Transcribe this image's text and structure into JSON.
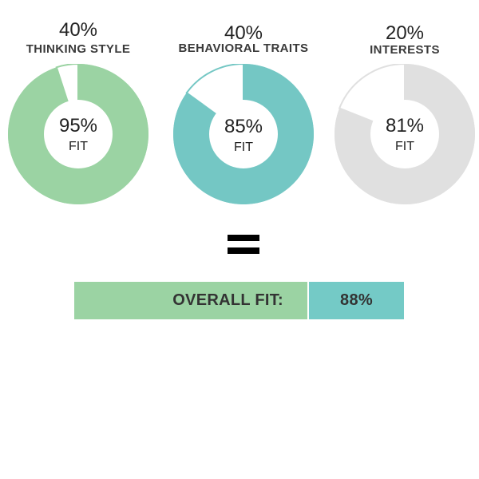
{
  "chart_data": {
    "type": "donut",
    "components": [
      {
        "category": "THINKING STYLE",
        "weight": "40%",
        "fit": 95,
        "fit_text": "95%",
        "fit_label": "FIT",
        "color": "#9bd3a3",
        "remainder_color": "#ffffff"
      },
      {
        "category": "BEHAVIORAL TRAITS",
        "weight": "40%",
        "fit": 85,
        "fit_text": "85%",
        "fit_label": "FIT",
        "color": "#74c7c4",
        "remainder_color": "#ffffff"
      },
      {
        "category": "INTERESTS",
        "weight": "20%",
        "fit": 81,
        "fit_text": "81%",
        "fit_label": "FIT",
        "color": "#e0e0e0",
        "remainder_color": "#ffffff"
      }
    ],
    "overall": {
      "label": "OVERALL FIT:",
      "value": "88%",
      "label_color": "#9bd3a3",
      "value_color": "#74cac6"
    }
  }
}
